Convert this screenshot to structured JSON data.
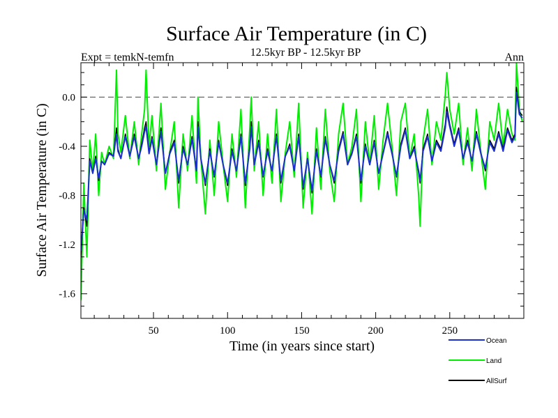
{
  "chart_data": {
    "type": "line",
    "title": "Surface Air Temperature (in C)",
    "subtitle_left": "Expt = temkN-temfn",
    "subtitle_center": "12.5kyr BP - 12.5kyr BP",
    "subtitle_right": "Ann",
    "xlabel": "Time (in years since start)",
    "ylabel": "Surface Air Temperature (in C)",
    "xlim": [
      1,
      300
    ],
    "ylim": [
      -1.8,
      0.28
    ],
    "xticks": [
      50,
      100,
      150,
      200,
      250
    ],
    "xtick_labels": [
      "50",
      "100",
      "150",
      "200",
      "250"
    ],
    "yticks": [
      0.0,
      -0.4,
      -0.8,
      -1.2,
      -1.6
    ],
    "ytick_labels": [
      "0.0",
      "-0.4",
      "-0.8",
      "-1.2",
      "-1.6"
    ],
    "reference_line": {
      "y": 0.0,
      "style": "dashed"
    },
    "legend_position": "bottom-right",
    "series": [
      {
        "name": "Land",
        "color": "#00ee00",
        "x": [
          1,
          3,
          5,
          7,
          9,
          11,
          13,
          15,
          17,
          20,
          23,
          25,
          26,
          28,
          31,
          34,
          37,
          40,
          42,
          44,
          45,
          47,
          49,
          52,
          55,
          58,
          61,
          64,
          67,
          70,
          73,
          76,
          79,
          80,
          82,
          85,
          88,
          91,
          94,
          97,
          100,
          103,
          106,
          109,
          112,
          115,
          116,
          118,
          121,
          124,
          127,
          130,
          133,
          136,
          139,
          142,
          145,
          148,
          151,
          154,
          157,
          160,
          163,
          166,
          169,
          172,
          175,
          178,
          181,
          184,
          187,
          190,
          193,
          196,
          199,
          202,
          205,
          208,
          211,
          214,
          217,
          220,
          223,
          226,
          229,
          230,
          232,
          235,
          238,
          241,
          244,
          247,
          248,
          250,
          253,
          256,
          259,
          262,
          265,
          268,
          271,
          274,
          277,
          280,
          283,
          286,
          289,
          292,
          294,
          295,
          297,
          299
        ],
        "values": [
          -1.65,
          -0.7,
          -1.3,
          -0.35,
          -0.6,
          -0.3,
          -0.8,
          -0.45,
          -0.55,
          -0.4,
          -0.5,
          0.22,
          -0.3,
          -0.45,
          -0.15,
          -0.5,
          -0.2,
          -0.55,
          -0.3,
          -0.1,
          0.22,
          -0.4,
          -0.15,
          -0.6,
          -0.05,
          -0.75,
          -0.45,
          -0.2,
          -0.9,
          -0.3,
          -0.6,
          -0.15,
          -0.7,
          0.0,
          -0.5,
          -0.95,
          -0.35,
          -0.8,
          -0.2,
          -0.55,
          -0.85,
          -0.3,
          -0.65,
          -0.1,
          -0.9,
          -0.25,
          0.0,
          -0.6,
          -0.2,
          -0.8,
          -0.3,
          -0.7,
          -0.1,
          -0.85,
          -0.45,
          -0.2,
          -0.65,
          -0.05,
          -0.9,
          -0.45,
          -0.95,
          -0.25,
          -0.75,
          -0.1,
          -0.6,
          -0.85,
          -0.3,
          -0.05,
          -0.55,
          -0.4,
          -0.1,
          -0.85,
          -0.2,
          -0.55,
          -0.15,
          -0.75,
          -0.35,
          -0.05,
          -0.4,
          -0.8,
          -0.2,
          -0.05,
          -0.5,
          -0.3,
          -0.8,
          -1.05,
          -0.35,
          -0.1,
          -0.55,
          -0.2,
          -0.35,
          0.02,
          0.2,
          -0.1,
          -0.3,
          -0.05,
          -0.55,
          -0.25,
          -0.6,
          -0.1,
          -0.45,
          -0.75,
          -0.2,
          -0.35,
          -0.05,
          -0.4,
          -0.1,
          -0.3,
          -0.35,
          0.28,
          -0.1,
          -0.2
        ]
      },
      {
        "name": "AllSurf",
        "color": "#000000",
        "x": [
          1,
          3,
          5,
          7,
          9,
          11,
          13,
          15,
          17,
          20,
          23,
          25,
          26,
          28,
          31,
          34,
          37,
          40,
          42,
          44,
          45,
          47,
          49,
          52,
          55,
          58,
          61,
          64,
          67,
          70,
          73,
          76,
          79,
          80,
          82,
          85,
          88,
          91,
          94,
          97,
          100,
          103,
          106,
          109,
          112,
          115,
          116,
          118,
          121,
          124,
          127,
          130,
          133,
          136,
          139,
          142,
          145,
          148,
          151,
          154,
          157,
          160,
          163,
          166,
          169,
          172,
          175,
          178,
          181,
          184,
          187,
          190,
          193,
          196,
          199,
          202,
          205,
          208,
          211,
          214,
          217,
          220,
          223,
          226,
          229,
          230,
          232,
          235,
          238,
          241,
          244,
          247,
          248,
          250,
          253,
          256,
          259,
          262,
          265,
          268,
          271,
          274,
          277,
          280,
          283,
          286,
          289,
          292,
          294,
          295,
          297,
          299
        ],
        "values": [
          -1.3,
          -0.9,
          -1.05,
          -0.5,
          -0.62,
          -0.48,
          -0.68,
          -0.52,
          -0.55,
          -0.45,
          -0.48,
          -0.25,
          -0.42,
          -0.5,
          -0.3,
          -0.48,
          -0.3,
          -0.5,
          -0.38,
          -0.25,
          -0.2,
          -0.45,
          -0.32,
          -0.55,
          -0.25,
          -0.62,
          -0.45,
          -0.35,
          -0.7,
          -0.4,
          -0.55,
          -0.32,
          -0.6,
          -0.2,
          -0.5,
          -0.72,
          -0.42,
          -0.65,
          -0.35,
          -0.55,
          -0.72,
          -0.42,
          -0.6,
          -0.3,
          -0.72,
          -0.4,
          -0.2,
          -0.55,
          -0.35,
          -0.65,
          -0.42,
          -0.6,
          -0.3,
          -0.7,
          -0.48,
          -0.38,
          -0.6,
          -0.3,
          -0.75,
          -0.5,
          -0.78,
          -0.42,
          -0.65,
          -0.32,
          -0.55,
          -0.7,
          -0.42,
          -0.28,
          -0.55,
          -0.45,
          -0.3,
          -0.7,
          -0.38,
          -0.55,
          -0.35,
          -0.62,
          -0.45,
          -0.28,
          -0.45,
          -0.65,
          -0.38,
          -0.25,
          -0.5,
          -0.4,
          -0.62,
          -0.7,
          -0.42,
          -0.3,
          -0.52,
          -0.35,
          -0.42,
          -0.22,
          -0.08,
          -0.22,
          -0.38,
          -0.25,
          -0.5,
          -0.35,
          -0.52,
          -0.28,
          -0.45,
          -0.6,
          -0.35,
          -0.42,
          -0.28,
          -0.42,
          -0.25,
          -0.35,
          -0.3,
          0.08,
          -0.12,
          -0.15
        ]
      },
      {
        "name": "Ocean",
        "color": "#1a2fcc",
        "x": [
          1,
          3,
          5,
          7,
          9,
          11,
          13,
          15,
          17,
          20,
          23,
          25,
          26,
          28,
          31,
          34,
          37,
          40,
          42,
          44,
          45,
          47,
          49,
          52,
          55,
          58,
          61,
          64,
          67,
          70,
          73,
          76,
          79,
          80,
          82,
          85,
          88,
          91,
          94,
          97,
          100,
          103,
          106,
          109,
          112,
          115,
          116,
          118,
          121,
          124,
          127,
          130,
          133,
          136,
          139,
          142,
          145,
          148,
          151,
          154,
          157,
          160,
          163,
          166,
          169,
          172,
          175,
          178,
          181,
          184,
          187,
          190,
          193,
          196,
          199,
          202,
          205,
          208,
          211,
          214,
          217,
          220,
          223,
          226,
          229,
          230,
          232,
          235,
          238,
          241,
          244,
          247,
          248,
          250,
          253,
          256,
          259,
          262,
          265,
          268,
          271,
          274,
          277,
          280,
          283,
          286,
          289,
          292,
          294,
          295,
          297,
          299
        ],
        "values": [
          -1.25,
          -0.92,
          -1.0,
          -0.52,
          -0.62,
          -0.5,
          -0.66,
          -0.52,
          -0.55,
          -0.46,
          -0.48,
          -0.3,
          -0.44,
          -0.5,
          -0.32,
          -0.48,
          -0.32,
          -0.5,
          -0.4,
          -0.28,
          -0.24,
          -0.46,
          -0.34,
          -0.55,
          -0.28,
          -0.62,
          -0.46,
          -0.37,
          -0.68,
          -0.42,
          -0.55,
          -0.34,
          -0.6,
          -0.24,
          -0.5,
          -0.7,
          -0.44,
          -0.64,
          -0.37,
          -0.55,
          -0.7,
          -0.44,
          -0.6,
          -0.32,
          -0.7,
          -0.42,
          -0.24,
          -0.55,
          -0.37,
          -0.64,
          -0.44,
          -0.6,
          -0.32,
          -0.68,
          -0.48,
          -0.4,
          -0.6,
          -0.32,
          -0.73,
          -0.5,
          -0.76,
          -0.44,
          -0.64,
          -0.34,
          -0.55,
          -0.68,
          -0.44,
          -0.3,
          -0.55,
          -0.46,
          -0.32,
          -0.68,
          -0.4,
          -0.55,
          -0.37,
          -0.62,
          -0.46,
          -0.3,
          -0.46,
          -0.64,
          -0.4,
          -0.27,
          -0.5,
          -0.42,
          -0.6,
          -0.68,
          -0.44,
          -0.32,
          -0.52,
          -0.37,
          -0.44,
          -0.25,
          -0.12,
          -0.24,
          -0.4,
          -0.27,
          -0.5,
          -0.37,
          -0.52,
          -0.3,
          -0.46,
          -0.58,
          -0.37,
          -0.44,
          -0.3,
          -0.44,
          -0.27,
          -0.37,
          -0.32,
          0.04,
          -0.14,
          -0.17
        ]
      }
    ]
  }
}
